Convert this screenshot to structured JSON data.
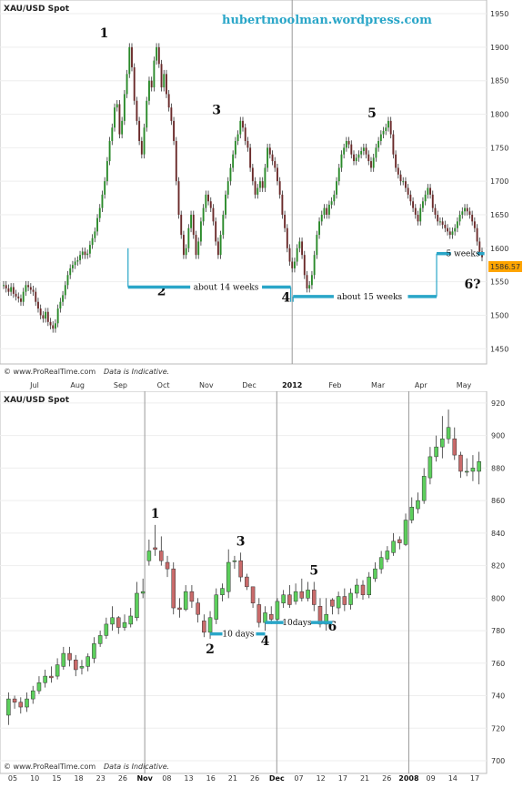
{
  "chart_data": [
    {
      "type": "line",
      "symbol": "XAU/USD Spot",
      "watermark": "hubertmoolman.wordpress.com",
      "ylim": [
        1430,
        1965
      ],
      "y_ticks": [
        "1950",
        "1900",
        "1850",
        "1800",
        "1750",
        "1700",
        "1650",
        "1600",
        "1550",
        "1500",
        "1450"
      ],
      "x_ticks": [
        "Jul",
        "Aug",
        "Sep",
        "Oct",
        "Nov",
        "Dec",
        "2012",
        "Feb",
        "Mar",
        "Apr",
        "May"
      ],
      "last_price": "1586.57",
      "footer_source": "© www.ProRealTime.com",
      "footer_note": "Data is Indicative.",
      "series": [
        {
          "values": [
            1545,
            1540,
            1535,
            1542,
            1532,
            1528,
            1525,
            1520,
            1535,
            1545,
            1542,
            1538,
            1535,
            1520,
            1510,
            1500,
            1495,
            1505,
            1490,
            1485,
            1480,
            1488,
            1510,
            1520,
            1530,
            1545,
            1560,
            1570,
            1575,
            1580,
            1582,
            1590,
            1595,
            1590,
            1592,
            1605,
            1615,
            1625,
            1645,
            1660,
            1680,
            1700,
            1730,
            1760,
            1780,
            1810,
            1815,
            1770,
            1790,
            1830,
            1860,
            1900,
            1870,
            1820,
            1790,
            1760,
            1740,
            1780,
            1820,
            1850,
            1840,
            1880,
            1900,
            1875,
            1840,
            1860,
            1830,
            1810,
            1790,
            1760,
            1700,
            1650,
            1620,
            1590,
            1600,
            1630,
            1650,
            1620,
            1590,
            1610,
            1640,
            1660,
            1680,
            1670,
            1660,
            1640,
            1610,
            1590,
            1620,
            1650,
            1680,
            1700,
            1720,
            1740,
            1760,
            1770,
            1790,
            1780,
            1760,
            1750,
            1720,
            1700,
            1680,
            1690,
            1700,
            1690,
            1720,
            1750,
            1740,
            1730,
            1720,
            1700,
            1680,
            1650,
            1630,
            1600,
            1580,
            1570,
            1580,
            1600,
            1610,
            1590,
            1560,
            1540,
            1545,
            1560,
            1590,
            1620,
            1640,
            1650,
            1660,
            1650,
            1665,
            1670,
            1680,
            1700,
            1720,
            1740,
            1750,
            1760,
            1755,
            1740,
            1730,
            1735,
            1740,
            1745,
            1750,
            1740,
            1730,
            1720,
            1735,
            1750,
            1760,
            1770,
            1775,
            1780,
            1790,
            1770,
            1740,
            1720,
            1710,
            1700,
            1700,
            1690,
            1680,
            1670,
            1660,
            1650,
            1640,
            1660,
            1670,
            1680,
            1690,
            1680,
            1660,
            1650,
            1640,
            1640,
            1635,
            1630,
            1625,
            1620,
            1625,
            1630,
            1640,
            1650,
            1655,
            1660,
            1655,
            1650,
            1640,
            1630,
            1610,
            1595,
            1586.57
          ]
        }
      ],
      "annotations": [
        {
          "text": "1",
          "x": 42,
          "y": 1915
        },
        {
          "text": "2",
          "x": 66,
          "y": 1530
        },
        {
          "text": "3",
          "x": 89,
          "y": 1800
        },
        {
          "text": "4",
          "x": 118,
          "y": 1520
        },
        {
          "text": "5",
          "x": 154,
          "y": 1795
        },
        {
          "text": "6?",
          "x": 196,
          "y": 1540
        },
        {
          "text": "about 14 weeks",
          "x": 92,
          "y": 1542
        },
        {
          "text": "about 15 weeks",
          "x": 140,
          "y": 1528
        },
        {
          "text": "5 weeks",
          "x": 186,
          "y": 1592
        }
      ]
    },
    {
      "type": "candlestick",
      "symbol": "XAU/USD Spot",
      "ylim": [
        700,
        925
      ],
      "y_ticks": [
        "920",
        "900",
        "880",
        "860",
        "840",
        "820",
        "800",
        "780",
        "760",
        "740",
        "720",
        "700"
      ],
      "x_ticks": [
        "05",
        "10",
        "15",
        "18",
        "23",
        "26",
        "Nov",
        "08",
        "13",
        "16",
        "21",
        "26",
        "Dec",
        "07",
        "12",
        "17",
        "21",
        "26",
        "2008",
        "09",
        "14",
        "17"
      ],
      "bold_ticks": [
        "Nov",
        "Dec",
        "2008"
      ],
      "footer_source": "© www.ProRealTime.com",
      "footer_note": "Data is Indicative.",
      "series": [
        {
          "name": "ohlc",
          "open": [
            728,
            738,
            736,
            733,
            738,
            743,
            748,
            752,
            752,
            758,
            766,
            762,
            757,
            758,
            763,
            772,
            777,
            784,
            788,
            782,
            784,
            788,
            803,
            823,
            831,
            829,
            822,
            818,
            794,
            793,
            804,
            797,
            786,
            779,
            787,
            802,
            804,
            823,
            823,
            813,
            807,
            796,
            785,
            790,
            787,
            797,
            802,
            798,
            804,
            800,
            805,
            795,
            784,
            799,
            794,
            801,
            796,
            803,
            808,
            802,
            812,
            818,
            824,
            828,
            836,
            833,
            848,
            855,
            860,
            874,
            887,
            893,
            898,
            898,
            888,
            878,
            878,
            878
          ],
          "close": [
            738,
            736,
            733,
            738,
            743,
            748,
            752,
            751,
            759,
            766,
            762,
            756,
            758,
            764,
            772,
            777,
            784,
            788,
            782,
            785,
            789,
            803,
            804,
            829,
            830,
            823,
            818,
            794,
            793,
            804,
            798,
            790,
            779,
            788,
            802,
            806,
            822,
            823,
            813,
            807,
            797,
            785,
            791,
            787,
            798,
            802,
            796,
            804,
            800,
            805,
            796,
            784,
            790,
            795,
            801,
            796,
            803,
            808,
            802,
            813,
            818,
            825,
            829,
            835,
            834,
            848,
            856,
            860,
            875,
            887,
            893,
            898,
            905,
            888,
            878,
            878,
            880,
            884
          ],
          "high": [
            742,
            740,
            739,
            742,
            746,
            752,
            756,
            758,
            763,
            770,
            770,
            765,
            762,
            766,
            776,
            780,
            788,
            795,
            789,
            790,
            794,
            810,
            812,
            836,
            845,
            838,
            826,
            822,
            800,
            808,
            808,
            800,
            790,
            792,
            806,
            809,
            830,
            826,
            828,
            815,
            806,
            800,
            795,
            795,
            800,
            805,
            808,
            809,
            812,
            810,
            810,
            800,
            800,
            800,
            804,
            806,
            806,
            812,
            811,
            816,
            822,
            829,
            832,
            840,
            838,
            852,
            862,
            865,
            880,
            893,
            900,
            912,
            916,
            905,
            890,
            886,
            888,
            890
          ],
          "low": [
            722,
            732,
            729,
            730,
            735,
            741,
            745,
            748,
            750,
            756,
            758,
            752,
            753,
            755,
            760,
            770,
            775,
            780,
            778,
            780,
            782,
            786,
            800,
            820,
            826,
            820,
            813,
            790,
            788,
            792,
            794,
            785,
            776,
            775,
            784,
            798,
            800,
            818,
            810,
            805,
            794,
            782,
            780,
            784,
            784,
            794,
            794,
            796,
            798,
            798,
            792,
            782,
            780,
            790,
            790,
            792,
            793,
            800,
            799,
            800,
            810,
            815,
            822,
            826,
            830,
            832,
            846,
            852,
            858,
            870,
            884,
            886,
            895,
            885,
            874,
            875,
            872,
            870
          ]
        }
      ],
      "annotations": [
        {
          "text": "1",
          "index": 24
        },
        {
          "text": "2",
          "index": 33
        },
        {
          "text": "3",
          "index": 38
        },
        {
          "text": "4",
          "index": 42
        },
        {
          "text": "5",
          "index": 50
        },
        {
          "text": "6",
          "index": 53
        },
        {
          "text": "10 days",
          "index": 37
        },
        {
          "text": "10days",
          "index": 47
        }
      ]
    }
  ]
}
